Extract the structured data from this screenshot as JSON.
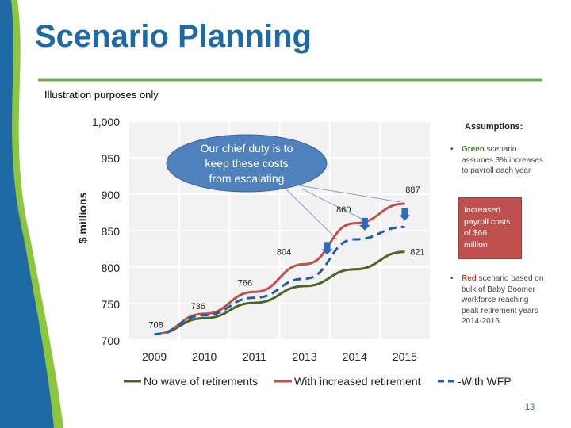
{
  "slide": {
    "title": "Scenario Planning",
    "subtitle": "Illustration purposes only",
    "page_number": "13",
    "colors": {
      "title": "#1f6aa5",
      "accent_line": "#6ab04c",
      "left_band_blue": "#1f6aa5",
      "left_band_green": "#8cc63f"
    }
  },
  "chart_data": {
    "type": "line",
    "categories": [
      "2009",
      "2010",
      "2011",
      "2013",
      "2014",
      "2015"
    ],
    "ylabel": "$ millions",
    "xlabel": "",
    "ylim": [
      700,
      1000
    ],
    "yticks": [
      "700",
      "750",
      "800",
      "850",
      "900",
      "950",
      "1,000"
    ],
    "grid": true,
    "legend_position": "bottom",
    "series": [
      {
        "name": "No wave of retirements",
        "color": "#4f6228",
        "style": "solid",
        "values": [
          708,
          730,
          751,
          774,
          797,
          821
        ]
      },
      {
        "name": "With increased retirement",
        "color": "#c0504d",
        "style": "solid",
        "values": [
          708,
          736,
          766,
          804,
          860,
          887
        ]
      },
      {
        "name": "With WFP",
        "color": "#1f5fa8",
        "style": "dashed",
        "values": [
          708,
          734,
          758,
          784,
          838,
          855
        ]
      }
    ],
    "data_labels": [
      {
        "text": "708",
        "series": 1,
        "index": 0
      },
      {
        "text": "736",
        "series": 1,
        "index": 1
      },
      {
        "text": "766",
        "series": 1,
        "index": 2
      },
      {
        "text": "804",
        "series": 1,
        "index": 3
      },
      {
        "text": "860",
        "series": 1,
        "index": 4
      },
      {
        "text": "887",
        "series": 1,
        "index": 5
      },
      {
        "text": "821",
        "series": 0,
        "index": 5
      }
    ],
    "callout": {
      "text": [
        "Our chief duty is to",
        "keep these costs",
        "from escalating"
      ],
      "fill": "#4f81bd"
    }
  },
  "assumptions": {
    "title": "Assumptions:",
    "bullet_char": "•",
    "green": {
      "keyword": "Green",
      "rest": " scenario assumes 3% increases to payroll each year"
    },
    "red_box": [
      "Increased",
      "payroll costs",
      "of $66",
      "million"
    ],
    "red": {
      "keyword": "Red",
      "rest": " scenario based on bulk of Baby Boomer workforce reaching peak retirement years 2014-2016"
    }
  }
}
